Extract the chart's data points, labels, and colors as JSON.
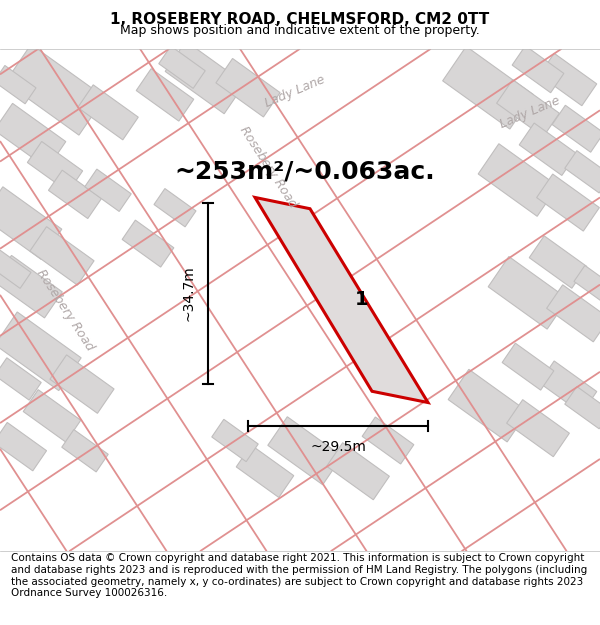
{
  "title": "1, ROSEBERY ROAD, CHELMSFORD, CM2 0TT",
  "subtitle": "Map shows position and indicative extent of the property.",
  "footer": "Contains OS data © Crown copyright and database right 2021. This information is subject to Crown copyright and database rights 2023 and is reproduced with the permission of HM Land Registry. The polygons (including the associated geometry, namely x, y co-ordinates) are subject to Crown copyright and database rights 2023 Ordnance Survey 100026316.",
  "area_text": "~253m²/~0.063ac.",
  "property_label": "1",
  "dim_height": "~34.7m",
  "dim_width": "~29.5m",
  "map_bg": "#f0eeee",
  "building_fill": "#d8d6d6",
  "building_edge": "#c0bebe",
  "road_color_dark": "#e09090",
  "road_color_light": "#f0c0c0",
  "property_fill": "#e0dcdc",
  "property_edge": "#cc0000",
  "title_fontsize": 11,
  "subtitle_fontsize": 9,
  "footer_fontsize": 7.5,
  "area_fontsize": 18,
  "label_fontsize": 14,
  "dim_fontsize": 10,
  "road_label_color": "#b0a8a8",
  "road_label_fontsize": 9
}
